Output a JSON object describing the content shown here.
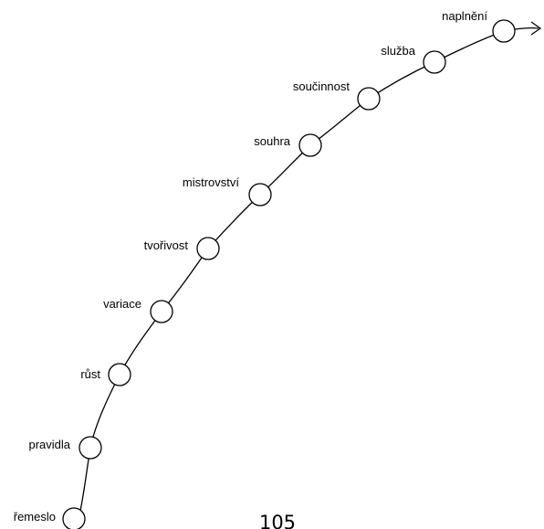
{
  "diagram": {
    "nodes": [
      {
        "label": "řemeslo"
      },
      {
        "label": "pravidla"
      },
      {
        "label": "růst"
      },
      {
        "label": "variace"
      },
      {
        "label": "tvořivost"
      },
      {
        "label": "mistrovství"
      },
      {
        "label": "souhra"
      },
      {
        "label": "součinnost"
      },
      {
        "label": "služba"
      },
      {
        "label": "naplnění"
      }
    ]
  },
  "page": {
    "number": "105"
  },
  "colors": {
    "stroke": "#000000",
    "background": "#ffffff"
  }
}
